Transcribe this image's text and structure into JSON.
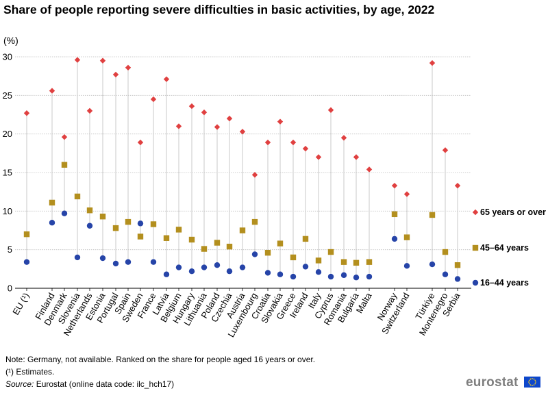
{
  "chart_data": {
    "type": "scatter",
    "title": "Share of people reporting severe difficulties in basic activities, by age, 2022",
    "ylabel": "(%)",
    "ylim": [
      0,
      30
    ],
    "yticks": [
      0,
      5,
      10,
      15,
      20,
      25,
      30
    ],
    "grid": true,
    "legend_position": "right",
    "categories": [
      "EU (¹)",
      "Finland",
      "Denmark",
      "Slovenia",
      "Netherlands",
      "Estonia",
      "Portugal",
      "Spain",
      "Sweden",
      "France",
      "Latvia",
      "Belgium",
      "Hungary",
      "Lithuania",
      "Poland",
      "Czechia",
      "Austria",
      "Luxembourg",
      "Croatia",
      "Slovakia",
      "Greece",
      "Ireland",
      "Italy",
      "Cyprus",
      "Romania",
      "Bulgaria",
      "Malta",
      "Norway",
      "Switzerland",
      "Türkiye",
      "Montenegro",
      "Serbia"
    ],
    "series": [
      {
        "name": "65 years or over",
        "marker": "diamond",
        "color": "#e04040",
        "values": [
          22.7,
          25.6,
          19.6,
          29.6,
          23.0,
          29.5,
          27.7,
          28.6,
          18.9,
          24.5,
          27.1,
          21.0,
          23.6,
          22.8,
          20.9,
          22.0,
          20.3,
          14.7,
          18.9,
          21.6,
          18.9,
          18.1,
          17.0,
          23.1,
          19.5,
          17.0,
          15.4,
          13.3,
          12.2,
          29.2,
          17.9,
          13.3
        ]
      },
      {
        "name": "45–64 years",
        "marker": "square",
        "color": "#b38f1e",
        "values": [
          7.0,
          11.1,
          16.0,
          11.9,
          10.1,
          9.3,
          7.8,
          8.6,
          6.7,
          8.3,
          6.5,
          7.6,
          6.3,
          5.1,
          5.9,
          5.4,
          7.5,
          8.6,
          4.6,
          5.8,
          4.0,
          6.4,
          3.6,
          4.7,
          3.4,
          3.3,
          3.4,
          9.6,
          6.6,
          9.5,
          4.7,
          3.0
        ]
      },
      {
        "name": "16–44 years",
        "marker": "circle",
        "color": "#2644a8",
        "values": [
          3.4,
          8.5,
          9.7,
          4.0,
          8.1,
          3.9,
          3.2,
          3.4,
          8.4,
          3.4,
          1.8,
          2.7,
          2.2,
          2.7,
          3.0,
          2.2,
          2.7,
          4.4,
          2.0,
          1.8,
          1.5,
          2.8,
          2.1,
          1.5,
          1.7,
          1.4,
          1.5,
          6.4,
          2.9,
          3.1,
          1.8,
          1.2
        ]
      }
    ]
  },
  "notes": {
    "note": "Note: Germany, not available. Ranked on the share for people aged 16 years or over.",
    "estimates": "(¹) Estimates.",
    "source_label": "Source:",
    "source_text": " Eurostat (online data code: ilc_hch17)"
  },
  "branding": {
    "logo_text": "eurostat"
  }
}
